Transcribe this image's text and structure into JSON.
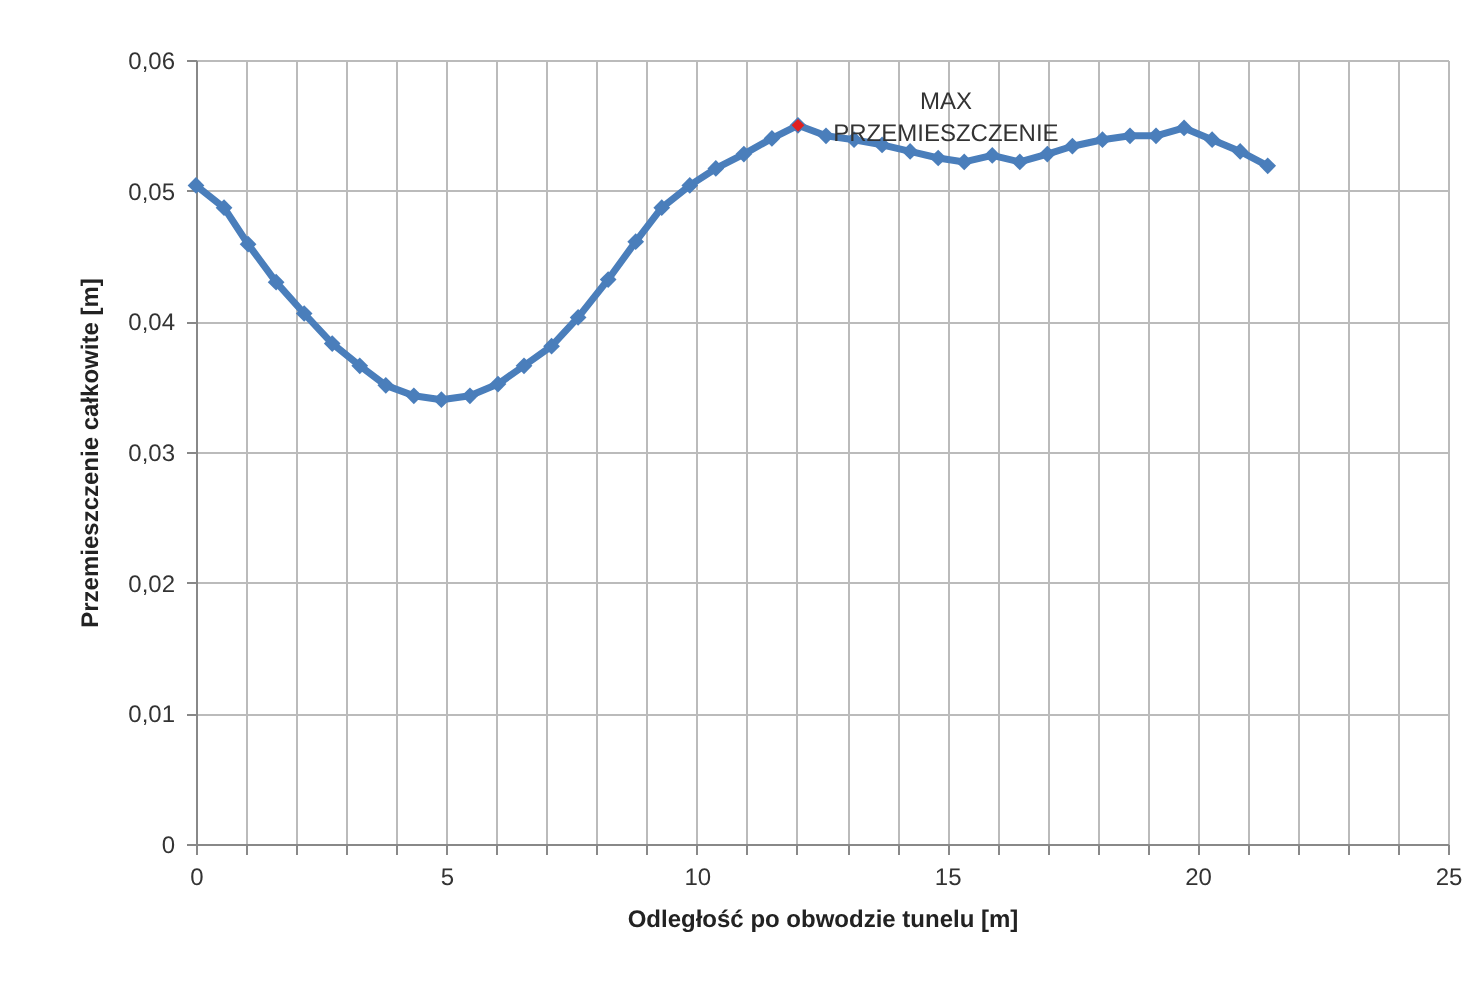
{
  "chart_data": {
    "type": "line",
    "xlabel": "Odległość po obwodzie tunelu [m]",
    "ylabel": "Przemieszczenie całkowite [m]",
    "xlim": [
      0,
      25
    ],
    "ylim": [
      0,
      0.06
    ],
    "xticks": [
      0,
      {
        "value": 1,
        "label": null
      },
      {
        "value": 2,
        "label": null
      },
      {
        "value": 3,
        "label": null
      },
      {
        "value": 4,
        "label": null
      },
      5,
      {
        "value": 6,
        "label": null
      },
      {
        "value": 7,
        "label": null
      },
      {
        "value": 8,
        "label": null
      },
      {
        "value": 9,
        "label": null
      },
      10,
      {
        "value": 11,
        "label": null
      },
      {
        "value": 12,
        "label": null
      },
      {
        "value": 13,
        "label": null
      },
      {
        "value": 14,
        "label": null
      },
      15,
      {
        "value": 16,
        "label": null
      },
      {
        "value": 17,
        "label": null
      },
      {
        "value": 18,
        "label": null
      },
      {
        "value": 19,
        "label": null
      },
      20,
      {
        "value": 21,
        "label": null
      },
      {
        "value": 22,
        "label": null
      },
      {
        "value": 23,
        "label": null
      },
      {
        "value": 24,
        "label": null
      },
      25
    ],
    "yticks": [
      0,
      {
        "value": 0.01,
        "label": "0,01"
      },
      {
        "value": 0.02,
        "label": "0,02"
      },
      {
        "value": 0.03,
        "label": "0,03"
      },
      {
        "value": 0.04,
        "label": "0,04"
      },
      {
        "value": 0.05,
        "label": "0,05"
      },
      {
        "value": 0.06,
        "label": "0,06"
      }
    ],
    "grid": true,
    "marker": "diamond",
    "line_style": "solid",
    "series": [
      {
        "color": "#4a7ebb",
        "x": [
          0,
          0.56,
          1.04,
          1.6,
          2.16,
          2.72,
          3.27,
          3.79,
          4.35,
          4.9,
          5.47,
          6.03,
          6.55,
          7.1,
          7.63,
          8.23,
          8.78,
          9.3,
          9.86,
          10.38,
          10.94,
          11.5,
          12.02,
          12.58,
          13.14,
          13.7,
          14.26,
          14.82,
          15.34,
          15.9,
          16.45,
          17.0,
          17.5,
          18.1,
          18.65,
          19.17,
          19.73,
          20.29,
          20.85,
          21.4
        ],
        "values": [
          0.0504,
          0.0487,
          0.0459,
          0.043,
          0.0406,
          0.0383,
          0.0366,
          0.0351,
          0.0343,
          0.034,
          0.0343,
          0.0352,
          0.0366,
          0.0381,
          0.0403,
          0.0432,
          0.0461,
          0.0487,
          0.0504,
          0.0517,
          0.0528,
          0.054,
          0.055,
          0.0542,
          0.0539,
          0.0535,
          0.053,
          0.0525,
          0.0522,
          0.0527,
          0.0522,
          0.0528,
          0.0534,
          0.0539,
          0.0542,
          0.0542,
          0.0548,
          0.0539,
          0.053,
          0.0519
        ]
      },
      {
        "type": "scatter",
        "color": "#e02020",
        "x": [
          12.02
        ],
        "values": [
          0.055
        ]
      }
    ],
    "annotations": [
      {
        "text": "MAX PRZEMIESZCZENIE",
        "x": 12.02,
        "y": 0.055
      }
    ]
  }
}
